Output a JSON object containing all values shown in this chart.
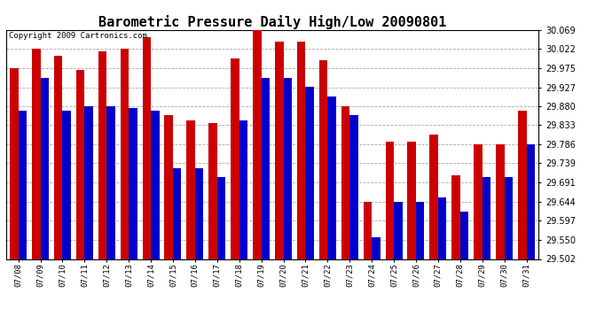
{
  "title": "Barometric Pressure Daily High/Low 20090801",
  "copyright": "Copyright 2009 Cartronics.com",
  "dates": [
    "07/08",
    "07/09",
    "07/10",
    "07/11",
    "07/12",
    "07/13",
    "07/14",
    "07/15",
    "07/16",
    "07/17",
    "07/18",
    "07/19",
    "07/20",
    "07/21",
    "07/22",
    "07/23",
    "07/24",
    "07/25",
    "07/26",
    "07/27",
    "07/28",
    "07/29",
    "07/30",
    "07/31"
  ],
  "highs": [
    29.975,
    30.022,
    30.004,
    29.969,
    30.016,
    30.022,
    30.051,
    29.857,
    29.845,
    29.839,
    29.998,
    30.069,
    30.04,
    30.04,
    29.993,
    29.88,
    29.644,
    29.792,
    29.792,
    29.81,
    29.71,
    29.786,
    29.786,
    29.868
  ],
  "lows": [
    29.868,
    29.951,
    29.868,
    29.88,
    29.88,
    29.875,
    29.868,
    29.727,
    29.727,
    29.704,
    29.845,
    29.951,
    29.951,
    29.928,
    29.904,
    29.857,
    29.556,
    29.644,
    29.644,
    29.655,
    29.62,
    29.704,
    29.704,
    29.786
  ],
  "yticks": [
    29.502,
    29.55,
    29.597,
    29.644,
    29.691,
    29.739,
    29.786,
    29.833,
    29.88,
    29.927,
    29.975,
    30.022,
    30.069
  ],
  "ymin": 29.502,
  "ymax": 30.069,
  "bar_width": 0.38,
  "high_color": "#cc0000",
  "low_color": "#0000cc",
  "bg_color": "#ffffff",
  "grid_color": "#aaaaaa",
  "title_fontsize": 11,
  "copyright_fontsize": 6.5,
  "tick_fontsize": 7,
  "xtick_fontsize": 6.5
}
